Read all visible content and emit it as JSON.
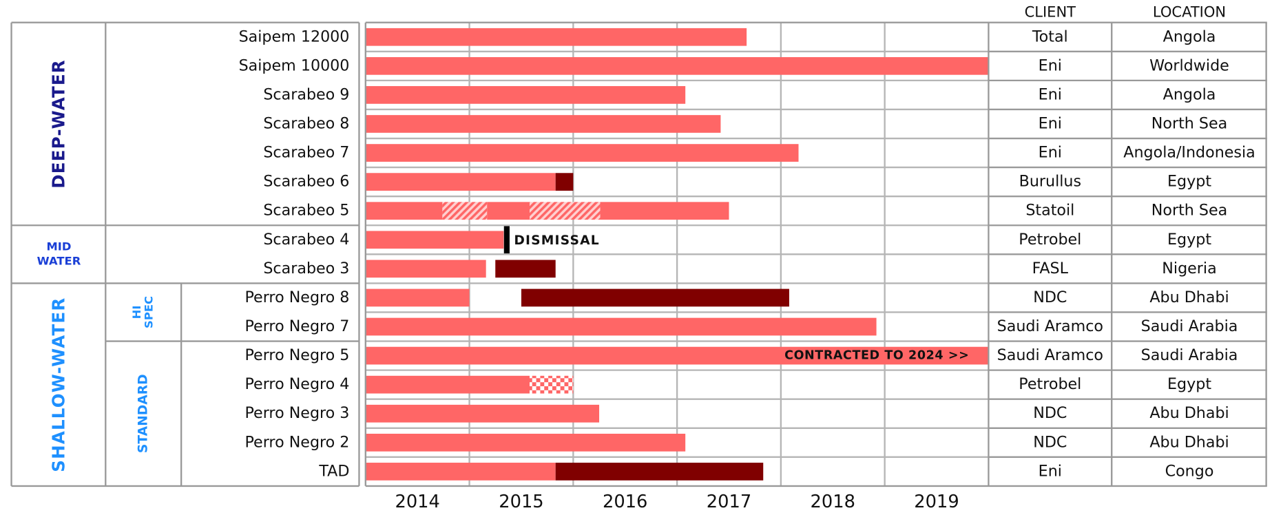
{
  "chart_data": {
    "type": "gantt",
    "xlim": [
      2014,
      2020
    ],
    "xticks": [
      2015,
      2016,
      2017,
      2018,
      2019
    ],
    "year_labels": [
      "2014",
      "2015",
      "2016",
      "2017",
      "2018",
      "2019"
    ],
    "columns": [
      "CLIENT",
      "LOCATION"
    ],
    "groups": [
      {
        "lines": [
          "DEEP-WATER"
        ],
        "color": "#1a1a8c",
        "subgroups": [
          {
            "rigs": [
              {
                "name": "Saipem 12000",
                "client": "Total",
                "location": "Angola",
                "segments": [
                  {
                    "start": 2014,
                    "end": 2017.67,
                    "color": "#ff6666"
                  }
                ]
              },
              {
                "name": "Saipem 10000",
                "client": "Eni",
                "location": "Worldwide",
                "segments": [
                  {
                    "start": 2014,
                    "end": 2020,
                    "color": "#ff6666"
                  }
                ]
              },
              {
                "name": "Scarabeo 9",
                "client": "Eni",
                "location": "Angola",
                "segments": [
                  {
                    "start": 2014,
                    "end": 2017.08,
                    "color": "#ff6666"
                  }
                ]
              },
              {
                "name": "Scarabeo 8",
                "client": "Eni",
                "location": "North Sea",
                "segments": [
                  {
                    "start": 2014,
                    "end": 2017.42,
                    "color": "#ff6666"
                  }
                ]
              },
              {
                "name": "Scarabeo 7",
                "client": "Eni",
                "location": "Angola/Indonesia",
                "segments": [
                  {
                    "start": 2014,
                    "end": 2018.17,
                    "color": "#ff6666"
                  }
                ]
              },
              {
                "name": "Scarabeo 6",
                "client": "Burullus",
                "location": "Egypt",
                "segments": [
                  {
                    "start": 2014,
                    "end": 2015.83,
                    "color": "#ff6666"
                  },
                  {
                    "start": 2015.83,
                    "end": 2016,
                    "color": "#800000"
                  }
                ]
              },
              {
                "name": "Scarabeo 5",
                "client": "Statoil",
                "location": "North Sea",
                "segments": [
                  {
                    "start": 2014,
                    "end": 2014.74,
                    "color": "#ff6666"
                  },
                  {
                    "start": 2014.74,
                    "end": 2015.17,
                    "color": "#ff6666",
                    "pattern": "diagonal"
                  },
                  {
                    "start": 2015.17,
                    "end": 2015.58,
                    "color": "#ff6666"
                  },
                  {
                    "start": 2015.58,
                    "end": 2016.26,
                    "color": "#ff6666",
                    "pattern": "diagonal"
                  },
                  {
                    "start": 2016.26,
                    "end": 2017.5,
                    "color": "#ff6666"
                  }
                ]
              }
            ]
          }
        ]
      },
      {
        "lines": [
          "MID",
          "WATER"
        ],
        "color": "#1a3fd6",
        "subgroups": [
          {
            "rigs": [
              {
                "name": "Scarabeo 4",
                "client": "Petrobel",
                "location": "Egypt",
                "segments": [
                  {
                    "start": 2014,
                    "end": 2015.33,
                    "color": "#ff6666"
                  }
                ],
                "marker": {
                  "at": 2015.36,
                  "label": "DISMISSAL"
                }
              },
              {
                "name": "Scarabeo 3",
                "client": "FASL",
                "location": "Nigeria",
                "segments": [
                  {
                    "start": 2014,
                    "end": 2015.16,
                    "color": "#ff6666"
                  },
                  {
                    "start": 2015.25,
                    "end": 2015.83,
                    "color": "#800000"
                  }
                ]
              }
            ]
          }
        ]
      },
      {
        "lines": [
          "SHALLOW-WATER"
        ],
        "color": "#1e90ff",
        "subgroups": [
          {
            "lines": [
              "HI",
              "SPEC"
            ],
            "rigs": [
              {
                "name": "Perro Negro 8",
                "client": "NDC",
                "location": "Abu Dhabi",
                "segments": [
                  {
                    "start": 2014,
                    "end": 2015,
                    "color": "#ff6666"
                  },
                  {
                    "start": 2015.5,
                    "end": 2018.08,
                    "color": "#800000"
                  }
                ]
              },
              {
                "name": "Perro Negro 7",
                "client": "Saudi Aramco",
                "location": "Saudi Arabia",
                "segments": [
                  {
                    "start": 2014,
                    "end": 2018.92,
                    "color": "#ff6666"
                  }
                ]
              }
            ]
          },
          {
            "lines": [
              "STANDARD"
            ],
            "rigs": [
              {
                "name": "Perro Negro 5",
                "client": "Saudi Aramco",
                "location": "Saudi Arabia",
                "segments": [
                  {
                    "start": 2014,
                    "end": 2020,
                    "color": "#ff6666"
                  }
                ],
                "annotation": "CONTRACTED TO 2024 >>"
              },
              {
                "name": "Perro Negro 4",
                "client": "Petrobel",
                "location": "Egypt",
                "segments": [
                  {
                    "start": 2014,
                    "end": 2015.58,
                    "color": "#ff6666"
                  },
                  {
                    "start": 2015.58,
                    "end": 2016,
                    "color": "#ff6666",
                    "pattern": "checker"
                  }
                ]
              },
              {
                "name": "Perro Negro 3",
                "client": "NDC",
                "location": "Abu Dhabi",
                "segments": [
                  {
                    "start": 2014,
                    "end": 2016.25,
                    "color": "#ff6666"
                  }
                ]
              },
              {
                "name": "Perro Negro 2",
                "client": "NDC",
                "location": "Abu Dhabi",
                "segments": [
                  {
                    "start": 2014,
                    "end": 2017.08,
                    "color": "#ff6666"
                  }
                ]
              },
              {
                "name": "TAD",
                "client": "Eni",
                "location": "Congo",
                "segments": [
                  {
                    "start": 2014,
                    "end": 2015.83,
                    "color": "#ff6666"
                  },
                  {
                    "start": 2015.83,
                    "end": 2017.83,
                    "color": "#800000"
                  }
                ]
              }
            ]
          }
        ]
      }
    ]
  }
}
